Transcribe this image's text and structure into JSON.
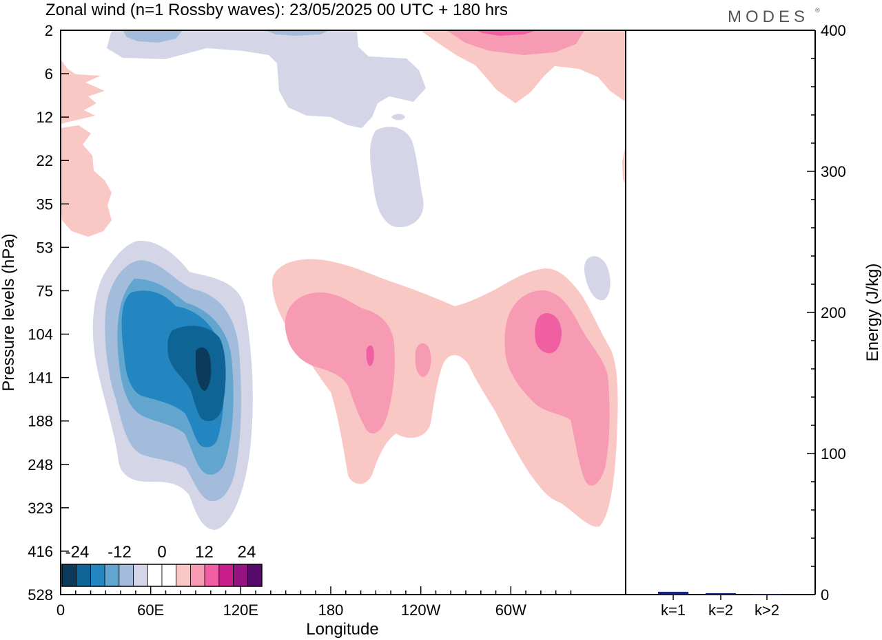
{
  "title": "Zonal wind (n=1 Rossby waves):  23/05/2025  00 UTC  + 180 hrs",
  "brand": "MODES",
  "chart_data": [
    {
      "type": "heatmap",
      "description_kind": "filled contour (longitude-pressure section)",
      "xlabel": "Longitude",
      "ylabel": "Pressure levels (hPa)",
      "x_ticks": [
        {
          "lon": 0,
          "label": "0"
        },
        {
          "lon": 60,
          "label": "60E"
        },
        {
          "lon": 120,
          "label": "120E"
        },
        {
          "lon": 180,
          "label": "180"
        },
        {
          "lon": 240,
          "label": "120W"
        },
        {
          "lon": 300,
          "label": "60W"
        }
      ],
      "xlim": [
        0,
        340
      ],
      "y_levels": [
        "2",
        "6",
        "12",
        "22",
        "35",
        "53",
        "75",
        "104",
        "141",
        "188",
        "248",
        "323",
        "416",
        "528"
      ],
      "colorbar": {
        "labels": [
          "-24",
          "-12",
          "0",
          "12",
          "24"
        ],
        "colors": [
          "#0b3a5a",
          "#0f6496",
          "#2386c0",
          "#62a6d0",
          "#a3bcdc",
          "#d4d6e8",
          "#ffffff",
          "#ffffff",
          "#f9c8c4",
          "#f79ab3",
          "#ef5fa1",
          "#c81e8c",
          "#961482",
          "#560a6a"
        ]
      },
      "features": [
        {
          "sign": "negative",
          "min_value": -24,
          "approx_center": {
            "lon": 85,
            "level": "141"
          }
        },
        {
          "sign": "positive",
          "max_value": 12,
          "approx_center": {
            "lon": 188,
            "level": "141"
          }
        },
        {
          "sign": "positive",
          "max_value": 12,
          "approx_center": {
            "lon": 294,
            "level": "104"
          }
        },
        {
          "sign": "positive",
          "max_value": 12,
          "approx_center": {
            "lon": 268,
            "level": "2"
          }
        }
      ]
    },
    {
      "type": "bar",
      "categories": [
        "k=1",
        "k=2",
        "k>2"
      ],
      "values": [
        2,
        1,
        0.5
      ],
      "ylabel": "Energy (J/kg)",
      "ylim": [
        0,
        400
      ],
      "y_ticks": [
        "0",
        "100",
        "200",
        "300",
        "400"
      ],
      "bar_color": "#1a237e"
    }
  ]
}
